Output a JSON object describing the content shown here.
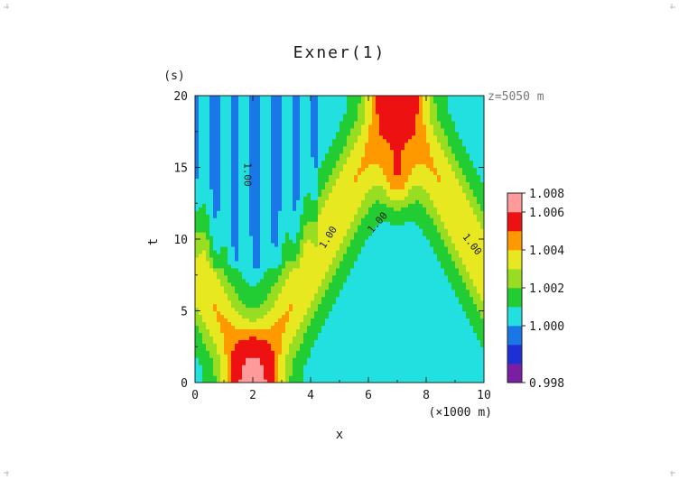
{
  "chart_data": {
    "type": "heatmap",
    "title": "Exner(1)",
    "annotation": "z=5050 m",
    "xlabel": "x",
    "x_unit": "(×1000 m)",
    "ylabel": "t",
    "y_unit": "(s)",
    "xlim": [
      0,
      10
    ],
    "ylim": [
      0,
      20
    ],
    "x_ticks": [
      "0",
      "2",
      "4",
      "6",
      "8",
      "10"
    ],
    "y_ticks": [
      "0",
      "5",
      "10",
      "15",
      "20"
    ],
    "contour_labels": [
      "1.00",
      "1.00",
      "1.00",
      "1.00"
    ],
    "colorbar": {
      "levels": [
        "0.998",
        "1.000",
        "1.002",
        "1.004",
        "1.006",
        "1.008"
      ],
      "level_values": [
        0.998,
        1.0,
        1.002,
        1.004,
        1.006,
        1.008
      ],
      "bin_colors": [
        "#7a1fa2",
        "#1e2fd6",
        "#1a78e6",
        "#22e0e0",
        "#22cc33",
        "#99dd22",
        "#e8e820",
        "#ff9900",
        "#ee1111",
        "#ff9a9a"
      ]
    },
    "features": [
      {
        "kind": "crossing-wave-peak",
        "x": 2.0,
        "t": 0.3,
        "peak": 1.0075
      },
      {
        "kind": "crossing-wave-peak",
        "x": 7.0,
        "t": 14.2,
        "peak": 1.007
      },
      {
        "kind": "minimum-region",
        "x_range": [
          0,
          4.2
        ],
        "t_range": [
          8,
          20
        ],
        "value": 0.9995
      }
    ]
  }
}
